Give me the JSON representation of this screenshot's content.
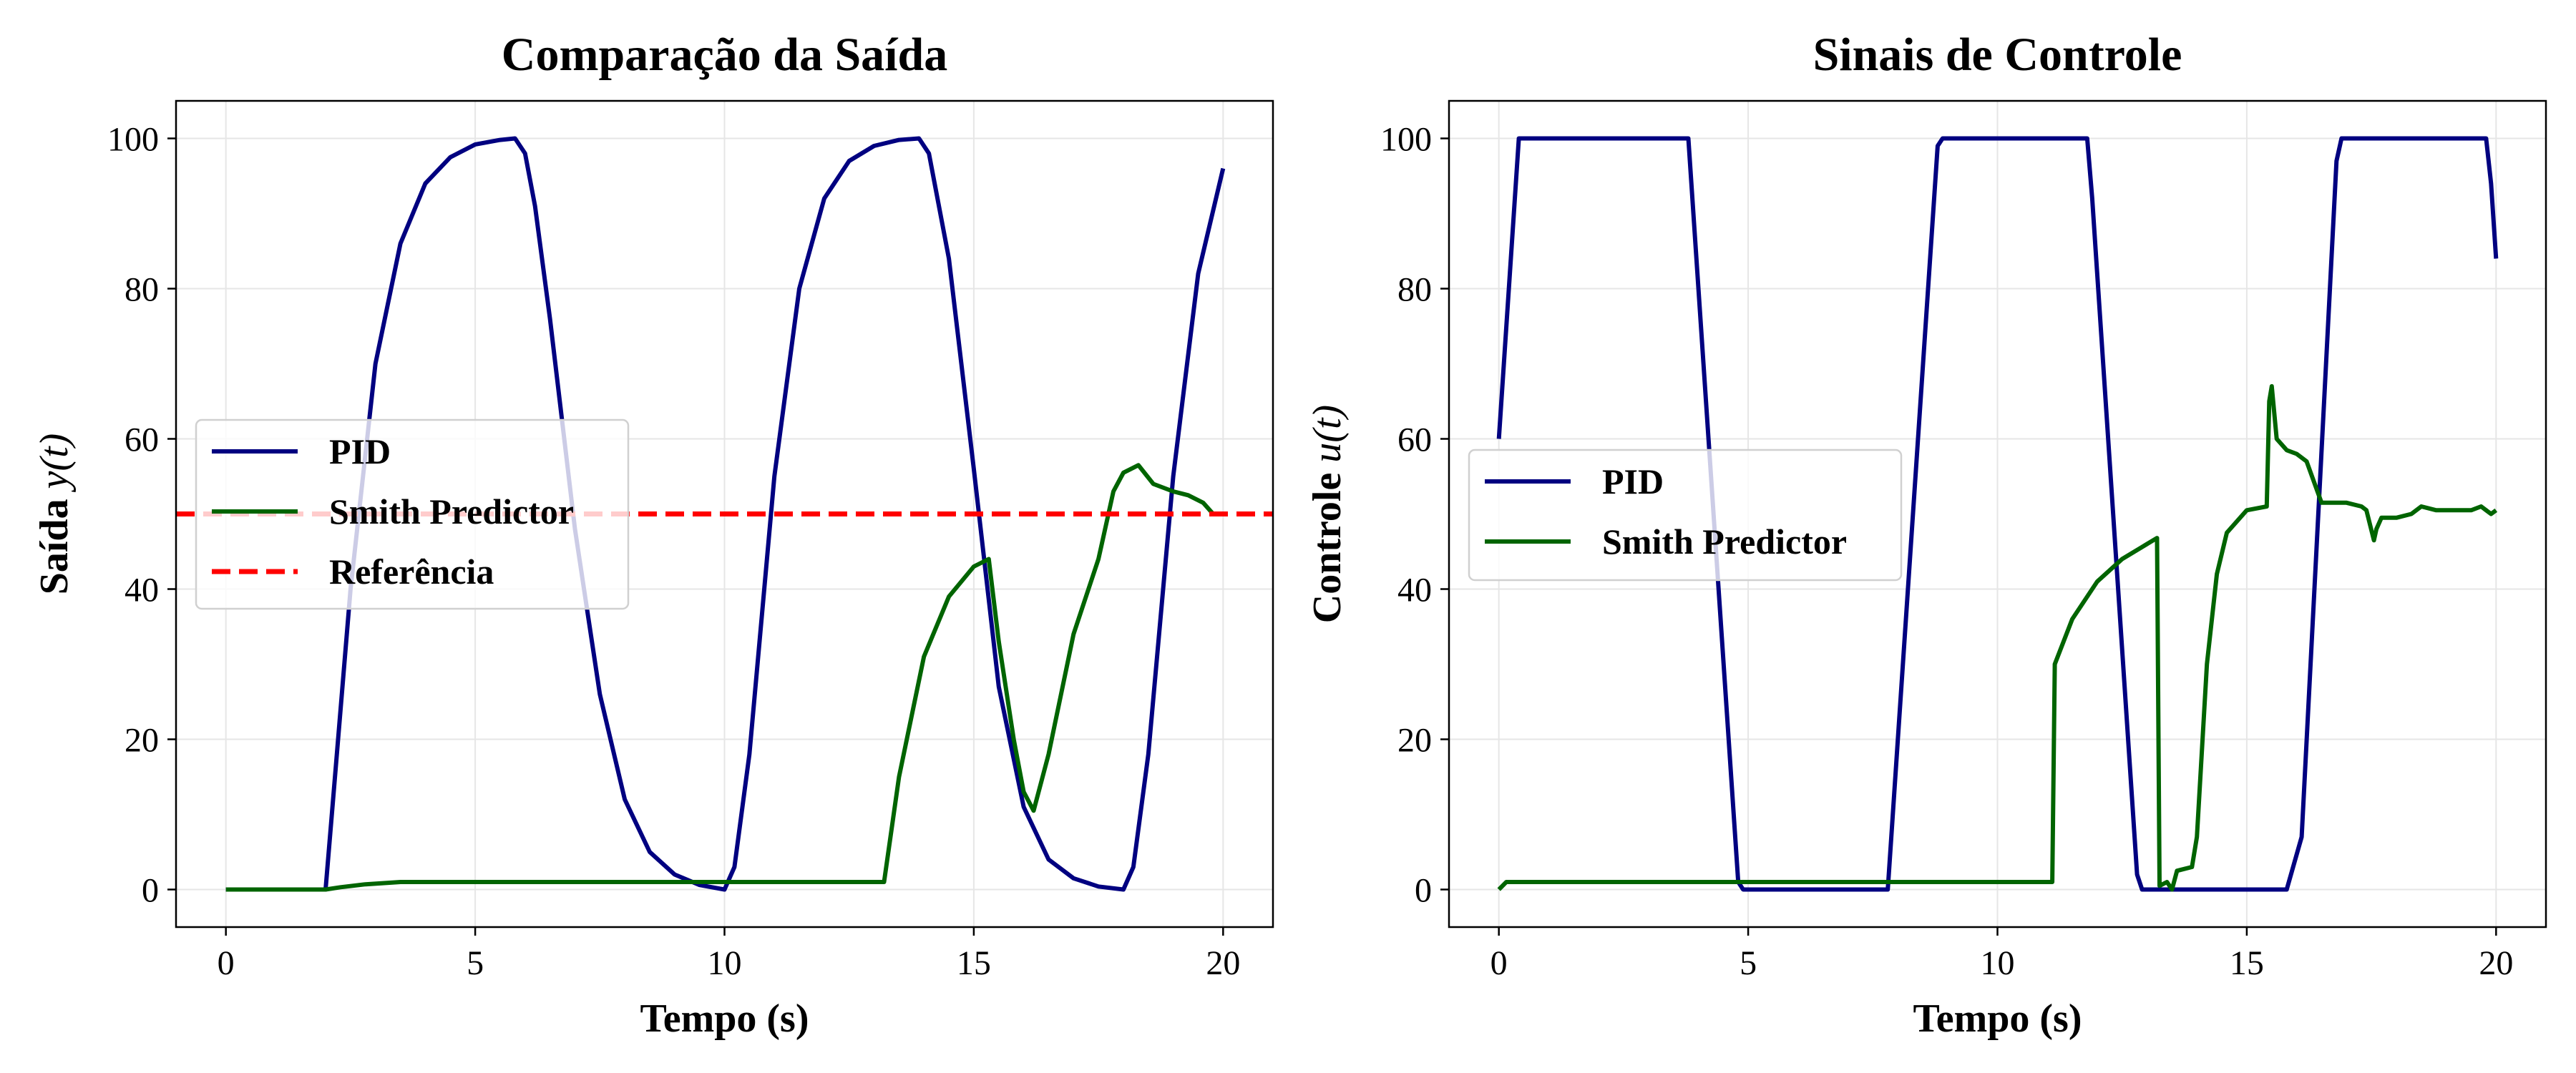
{
  "chart_data": [
    {
      "type": "line",
      "title": "Comparação da Saída",
      "xlabel": "Tempo (s)",
      "ylabel": "Saída",
      "ylabel_var": "y(t)",
      "xlim": [
        -1,
        21
      ],
      "ylim": [
        -5,
        105
      ],
      "xticks": [
        0,
        5,
        10,
        15,
        20
      ],
      "yticks": [
        0,
        20,
        40,
        60,
        80,
        100
      ],
      "grid": true,
      "legend_position": "center-left",
      "series": [
        {
          "name": "PID",
          "color": "#000080",
          "style": "solid",
          "x": [
            0,
            2.0,
            2.2,
            2.5,
            3.0,
            3.5,
            4.0,
            4.5,
            5.0,
            5.5,
            5.8,
            6.0,
            6.2,
            6.5,
            7.0,
            7.5,
            8.0,
            8.5,
            9.0,
            9.5,
            10.0,
            10.2,
            10.5,
            11.0,
            11.5,
            12.0,
            12.5,
            13.0,
            13.5,
            13.9,
            14.1,
            14.5,
            15.0,
            15.5,
            16.0,
            16.5,
            17.0,
            17.5,
            18.0,
            18.2,
            18.5,
            19.0,
            19.5,
            20.0
          ],
          "y": [
            0,
            0,
            16,
            40,
            70,
            86,
            94,
            97.5,
            99.2,
            99.8,
            100,
            98,
            91,
            76,
            48,
            26,
            12,
            5,
            2,
            0.6,
            0,
            3,
            18,
            55,
            80,
            92,
            97,
            99,
            99.8,
            100,
            98,
            84,
            56,
            27,
            11,
            4,
            1.5,
            0.4,
            0,
            3,
            18,
            55,
            82,
            96
          ]
        },
        {
          "name": "Smith Predictor",
          "color": "#006400",
          "style": "solid",
          "x": [
            0,
            2.0,
            2.3,
            2.8,
            3.5,
            5.0,
            8.0,
            10.0,
            13.0,
            13.2,
            13.5,
            14.0,
            14.5,
            15.0,
            15.3,
            15.5,
            15.8,
            16.0,
            16.2,
            16.5,
            17.0,
            17.5,
            17.6,
            17.8,
            18.0,
            18.3,
            18.6,
            19.0,
            19.3,
            19.6,
            19.8,
            20.0
          ],
          "y": [
            0,
            0,
            0.3,
            0.7,
            1.0,
            1.0,
            1.0,
            1.0,
            1.0,
            1.0,
            15,
            31,
            39,
            43,
            44,
            33,
            20,
            13,
            10.5,
            18,
            34,
            44,
            47,
            53,
            55.5,
            56.5,
            54,
            53,
            52.5,
            51.5,
            50,
            50
          ]
        },
        {
          "name": "Referência",
          "color": "#ff0000",
          "style": "dashed",
          "x": [
            -1,
            21
          ],
          "y": [
            50,
            50
          ]
        }
      ]
    },
    {
      "type": "line",
      "title": "Sinais de Controle",
      "xlabel": "Tempo (s)",
      "ylabel": "Controle",
      "ylabel_var": "u(t)",
      "xlim": [
        -1,
        21
      ],
      "ylim": [
        -5,
        105
      ],
      "xticks": [
        0,
        5,
        10,
        15,
        20
      ],
      "yticks": [
        0,
        20,
        40,
        60,
        80,
        100
      ],
      "grid": true,
      "legend_position": "center-left",
      "series": [
        {
          "name": "PID",
          "color": "#000080",
          "style": "solid",
          "x": [
            0,
            0.4,
            3.8,
            4.8,
            4.9,
            7.8,
            8.8,
            8.9,
            11.8,
            11.9,
            12.8,
            12.9,
            15.8,
            16.1,
            16.8,
            16.9,
            19.8,
            19.9,
            20.0
          ],
          "y": [
            60,
            100,
            100,
            1,
            0,
            0,
            99,
            100,
            100,
            92,
            2,
            0,
            0,
            7,
            97,
            100,
            100,
            94,
            84
          ]
        },
        {
          "name": "Smith Predictor",
          "color": "#006400",
          "style": "solid",
          "x": [
            0,
            0.15,
            11.1,
            11.15,
            11.5,
            12.0,
            12.5,
            13.0,
            13.2,
            13.25,
            13.4,
            13.5,
            13.6,
            13.9,
            14.0,
            14.2,
            14.4,
            14.6,
            15.0,
            15.4,
            15.45,
            15.5,
            15.6,
            15.8,
            16.0,
            16.2,
            16.5,
            17.0,
            17.3,
            17.4,
            17.55,
            17.6,
            17.7,
            18.0,
            18.3,
            18.5,
            18.8,
            19.5,
            19.7,
            19.8,
            19.9,
            20.0
          ],
          "y": [
            0,
            1,
            1,
            30,
            36,
            41,
            44,
            46,
            46.8,
            0.5,
            1,
            0,
            2.5,
            3,
            7,
            30,
            42,
            47.5,
            50.5,
            51,
            65,
            67,
            60,
            58.5,
            58,
            57,
            51.5,
            51.5,
            51,
            50.5,
            46.5,
            48,
            49.5,
            49.5,
            50,
            51,
            50.5,
            50.5,
            51,
            50.5,
            50,
            50.5
          ]
        }
      ]
    }
  ]
}
